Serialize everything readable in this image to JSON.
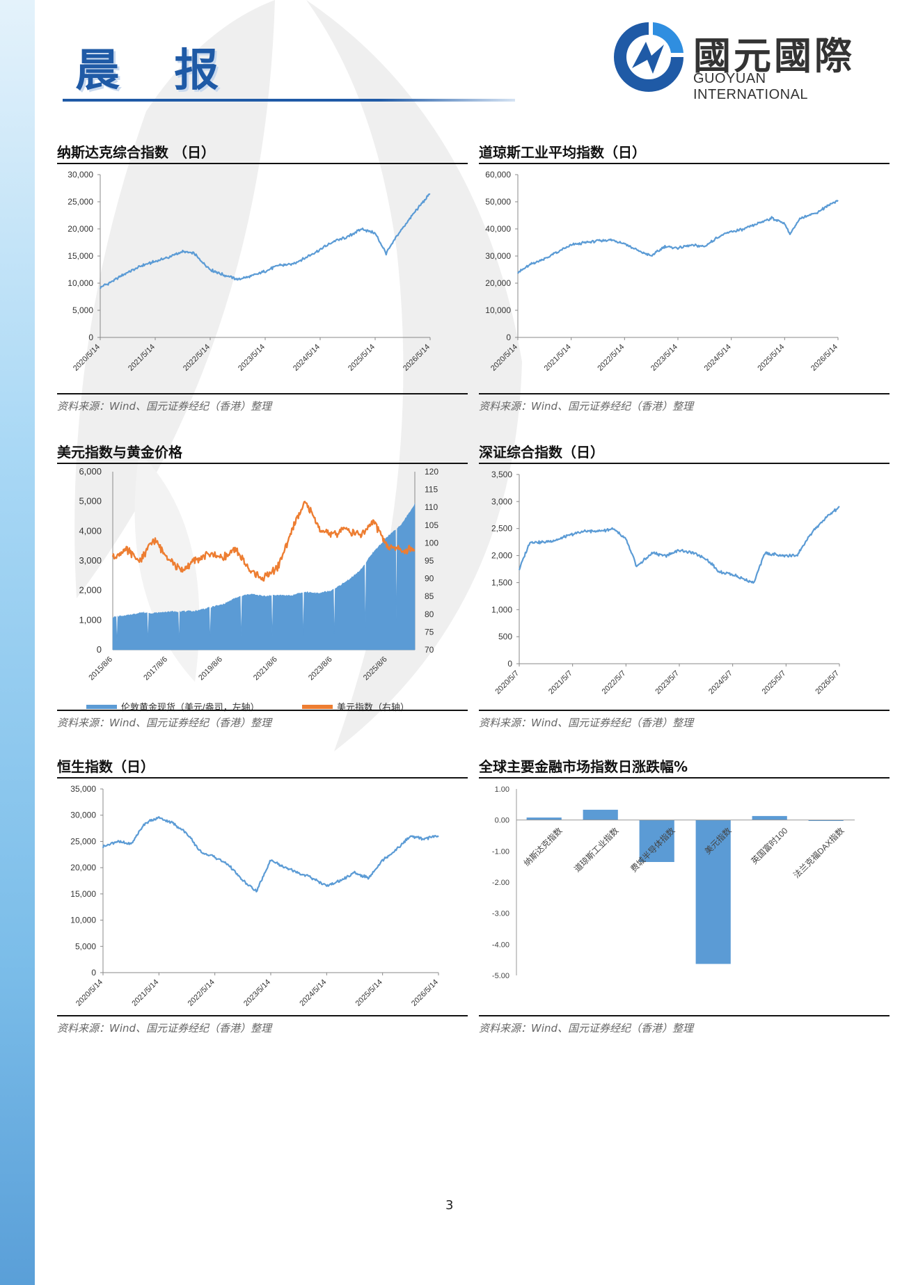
{
  "header": {
    "title": "晨 报"
  },
  "logo": {
    "name_cn": "國元國際",
    "name_en": "GUOYUAN INTERNATIONAL"
  },
  "source_note": "资料来源：Wind、国元证券经纪（香港）整理",
  "page_number": "3",
  "colors": {
    "line_blue": "#5b9bd5",
    "area_blue": "#5b9bd5",
    "usd_orange": "#ed7d31",
    "brand_blue": "#1f5aa6"
  },
  "panels": {
    "nasdaq": {
      "title": "纳斯达克综合指数 （日）"
    },
    "dow": {
      "title": "道琼斯工业平均指数（日）"
    },
    "usd_gold": {
      "title": "美元指数与黄金价格"
    },
    "szse": {
      "title": "深证综合指数（日）"
    },
    "hsi": {
      "title": "恒生指数（日）"
    },
    "global": {
      "title": "全球主要金融市场指数日涨跌幅%"
    }
  },
  "chart_data": [
    {
      "id": "nasdaq",
      "type": "line",
      "x_ticks": [
        "2020/5/14",
        "2021/5/14",
        "2022/5/14",
        "2023/5/14",
        "2024/5/14",
        "2025/5/14",
        "2026/5/14"
      ],
      "y_ticks": [
        "0",
        "5,000",
        "10,000",
        "15,000",
        "20,000",
        "25,000",
        "30,000"
      ],
      "ylim": [
        0,
        30000
      ],
      "x": [
        0,
        0.25,
        0.5,
        0.75,
        1.0,
        1.25,
        1.5,
        1.7,
        2.0,
        2.25,
        2.5,
        2.75,
        3.0,
        3.25,
        3.5,
        3.75,
        4.0,
        4.25,
        4.5,
        4.75,
        5.0,
        5.2,
        5.4,
        5.75,
        6.0
      ],
      "values": [
        9200,
        10500,
        12000,
        13200,
        14000,
        14800,
        15800,
        15500,
        12500,
        11500,
        10700,
        11300,
        12200,
        13300,
        13500,
        14800,
        16200,
        17700,
        18500,
        20000,
        19200,
        15500,
        18800,
        23500,
        26500
      ]
    },
    {
      "id": "dow",
      "type": "line",
      "x_ticks": [
        "2020/5/14",
        "2021/5/14",
        "2022/5/14",
        "2023/5/14",
        "2024/5/14",
        "2025/5/14",
        "2026/5/14"
      ],
      "y_ticks": [
        "0",
        "10,000",
        "20,000",
        "30,000",
        "40,000",
        "50,000",
        "60,000"
      ],
      "ylim": [
        0,
        60000
      ],
      "x": [
        0,
        0.25,
        0.5,
        0.75,
        1.0,
        1.25,
        1.5,
        1.75,
        2.0,
        2.25,
        2.5,
        2.75,
        3.0,
        3.25,
        3.5,
        3.75,
        4.0,
        4.25,
        4.5,
        4.75,
        5.0,
        5.1,
        5.3,
        5.6,
        5.85,
        6.0
      ],
      "values": [
        24000,
        27000,
        29000,
        31500,
        34000,
        35000,
        35500,
        36000,
        34500,
        32000,
        30000,
        33500,
        33000,
        34000,
        33500,
        37000,
        39000,
        40000,
        42000,
        44000,
        42000,
        38000,
        44000,
        46000,
        49000,
        50500
      ]
    },
    {
      "id": "usd_gold",
      "type": "area+line",
      "x_ticks": [
        "2015/8/6",
        "2017/8/6",
        "2019/8/6",
        "2021/8/6",
        "2023/8/6",
        "2025/8/6"
      ],
      "y_ticks_left": [
        "0",
        "1,000",
        "2,000",
        "3,000",
        "4,000",
        "5,000",
        "6,000"
      ],
      "y_ticks_right": [
        "70",
        "75",
        "80",
        "85",
        "90",
        "95",
        "100",
        "105",
        "110",
        "115",
        "120"
      ],
      "ylim_left": [
        0,
        6000
      ],
      "ylim_right": [
        70,
        120
      ],
      "legend": [
        "伦敦黄金现货（美元/盎司，左轴）",
        "美元指数（右轴）"
      ],
      "gold": {
        "x": [
          0,
          0.5,
          1,
          1.5,
          2,
          2.5,
          3,
          3.5,
          4,
          4.5,
          5,
          5.5,
          6,
          6.5,
          7,
          7.5,
          8,
          8.5,
          9,
          9.5,
          10,
          10.5,
          11
        ],
        "values": [
          1100,
          1150,
          1250,
          1230,
          1280,
          1290,
          1300,
          1420,
          1520,
          1750,
          1880,
          1800,
          1850,
          1820,
          1950,
          1900,
          2000,
          2300,
          2650,
          3300,
          3800,
          4200,
          4900
        ]
      },
      "usd": {
        "x": [
          0,
          0.5,
          1,
          1.5,
          2,
          2.5,
          3,
          3.5,
          4,
          4.5,
          5,
          5.5,
          6,
          6.5,
          7,
          7.5,
          8,
          8.5,
          9,
          9.5,
          10,
          10.5,
          11
        ],
        "values": [
          96,
          98,
          95,
          101,
          96,
          92,
          95,
          97,
          96,
          98,
          92,
          90,
          93,
          103,
          112,
          104,
          102,
          104,
          102,
          106,
          99,
          98,
          98
        ]
      },
      "series": [
        {
          "name": "伦敦黄金现货（美元/盎司，左轴）"
        },
        {
          "name": "美元指数（右轴）"
        }
      ]
    },
    {
      "id": "szse",
      "type": "line",
      "x_ticks": [
        "2020/5/7",
        "2021/5/7",
        "2022/5/7",
        "2023/5/7",
        "2024/5/7",
        "2025/5/7",
        "2026/5/7"
      ],
      "y_ticks": [
        "0",
        "500",
        "1,000",
        "1,500",
        "2,000",
        "2,500",
        "3,000",
        "3,500"
      ],
      "ylim": [
        0,
        3500
      ],
      "x": [
        0,
        0.2,
        0.5,
        0.75,
        1.0,
        1.25,
        1.5,
        1.75,
        2.0,
        2.2,
        2.5,
        2.75,
        3.0,
        3.25,
        3.5,
        3.75,
        4.0,
        4.25,
        4.4,
        4.6,
        4.9,
        5.2,
        5.5,
        5.75,
        6.0
      ],
      "values": [
        1750,
        2250,
        2250,
        2300,
        2400,
        2450,
        2450,
        2500,
        2300,
        1800,
        2050,
        2000,
        2100,
        2050,
        1950,
        1700,
        1650,
        1550,
        1500,
        2050,
        2000,
        2000,
        2450,
        2700,
        2900
      ]
    },
    {
      "id": "hsi",
      "type": "line",
      "x_ticks": [
        "2020/5/14",
        "2021/5/14",
        "2022/5/14",
        "2023/5/14",
        "2024/5/14",
        "2025/5/14",
        "2026/5/14"
      ],
      "y_ticks": [
        "0",
        "5,000",
        "10,000",
        "15,000",
        "20,000",
        "25,000",
        "30,000",
        "35,000"
      ],
      "ylim": [
        0,
        35000
      ],
      "x": [
        0,
        0.25,
        0.5,
        0.75,
        1.0,
        1.25,
        1.5,
        1.75,
        2.0,
        2.25,
        2.5,
        2.75,
        3.0,
        3.25,
        3.5,
        3.75,
        4.0,
        4.25,
        4.5,
        4.75,
        5.0,
        5.25,
        5.5,
        5.75,
        6.0
      ],
      "values": [
        24000,
        25000,
        24500,
        28500,
        29500,
        28500,
        26500,
        23000,
        22000,
        20500,
        17500,
        15500,
        21500,
        20000,
        19000,
        18000,
        16500,
        17500,
        19000,
        18000,
        21500,
        23500,
        26000,
        25500,
        26000
      ]
    },
    {
      "id": "global",
      "type": "bar",
      "categories": [
        "纳斯达克指数",
        "道琼斯工业指数",
        "费城半导体指数",
        "美元指数",
        "英国富时100",
        "法兰克福DAX指数"
      ],
      "values": [
        0.08,
        0.33,
        -1.35,
        -4.63,
        0.13,
        -0.03
      ],
      "y_ticks": [
        "1.00",
        "0.00",
        "-1.00",
        "-2.00",
        "-3.00",
        "-4.00",
        "-5.00"
      ],
      "ylim": [
        -5,
        1
      ]
    }
  ]
}
